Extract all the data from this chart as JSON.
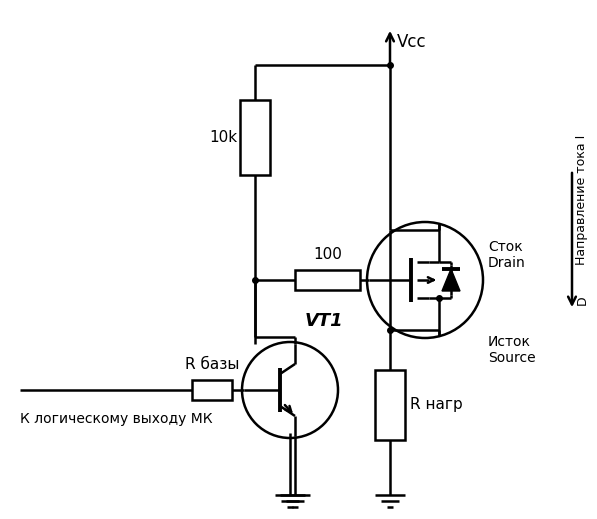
{
  "bg_color": "#ffffff",
  "line_color": "#000000",
  "line_width": 1.8,
  "labels": {
    "vcc": "Vcc",
    "r10k": "10k",
    "r100": "100",
    "stok": "Сток\nDrain",
    "istok": "Исток\nSource",
    "r_nagr": "R нагр",
    "r_bazy": "R базы",
    "vt1": "VT1",
    "logic": "К логическому выходу МК",
    "direction": "Направление тока I",
    "I_D": "D"
  }
}
